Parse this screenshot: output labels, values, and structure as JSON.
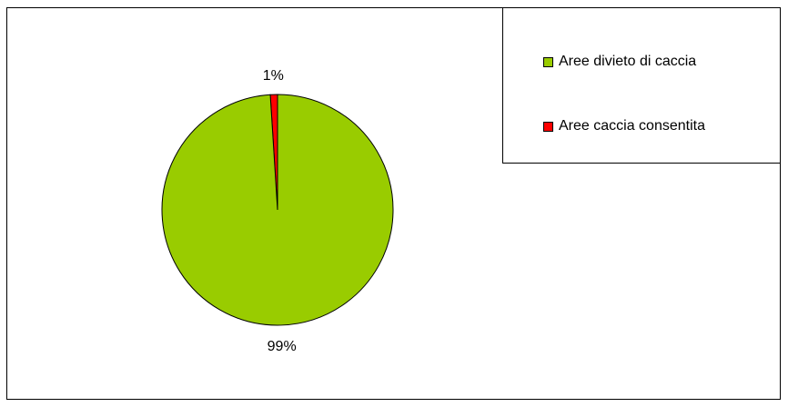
{
  "chart_data": {
    "type": "pie",
    "title": "",
    "categories": [
      "Aree divieto di caccia",
      "Aree caccia consentita"
    ],
    "values": [
      99,
      1
    ],
    "data_labels": [
      "99%",
      "1%"
    ],
    "colors": [
      "#99CC00",
      "#FF0000"
    ],
    "legend_position": "top-right"
  }
}
